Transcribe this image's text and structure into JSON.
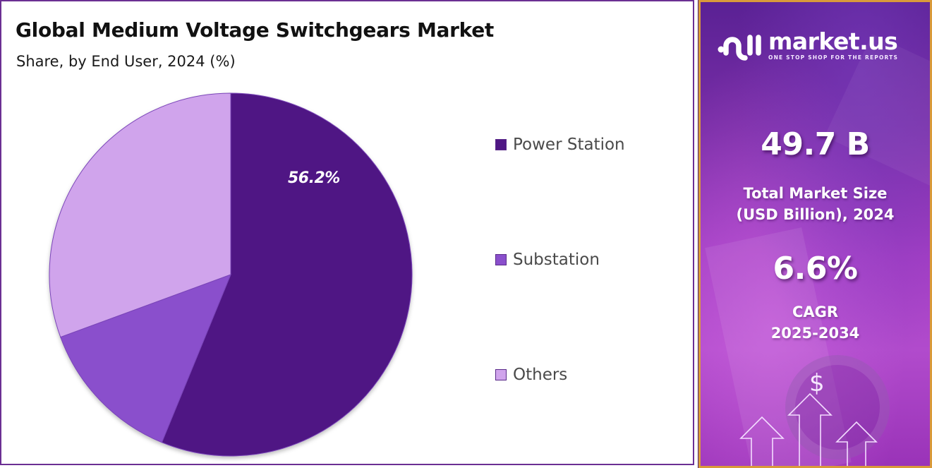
{
  "header": {
    "title": "Global Medium Voltage Switchgears Market",
    "subtitle": "Share, by End User, 2024 (%)"
  },
  "pie": {
    "highlight_label": "56.2%"
  },
  "legend": [
    {
      "label": "Power Station",
      "color": "#4f1784"
    },
    {
      "label": "Substation",
      "color": "#8a4fcc"
    },
    {
      "label": "Others",
      "color": "#d0a4ec"
    }
  ],
  "brand": {
    "name": "market.us",
    "tagline": "ONE STOP SHOP FOR THE REPORTS",
    "icon": "market-us-logo-icon"
  },
  "stats": {
    "market_size_value": "49.7 B",
    "market_size_caption_line1": "Total Market Size",
    "market_size_caption_line2": "(USD Billion), 2024",
    "cagr_value": "6.6%",
    "cagr_caption_line1": "CAGR",
    "cagr_caption_line2": "2025-2034",
    "dollar_symbol": "$"
  },
  "colors": {
    "frame": "#6b2f93",
    "accent_border": "#d99a3a",
    "power_station": "#4f1784",
    "substation": "#8a4fcc",
    "others": "#d0a4ec"
  },
  "chart_data": {
    "type": "pie",
    "title": "Global Medium Voltage Switchgears Market",
    "subtitle": "Share, by End User, 2024 (%)",
    "categories": [
      "Power Station",
      "Substation",
      "Others"
    ],
    "values": [
      56.2,
      13.2,
      30.6
    ],
    "labeled_values": {
      "Power Station": "56.2%"
    },
    "colors": [
      "#4f1784",
      "#8a4fcc",
      "#d0a4ec"
    ],
    "start_angle": "12 o'clock, clockwise",
    "legend_position": "right",
    "side_stats": {
      "total_market_size_usd_billion_2024": 49.7,
      "cagr_2025_2034_percent": 6.6
    }
  }
}
